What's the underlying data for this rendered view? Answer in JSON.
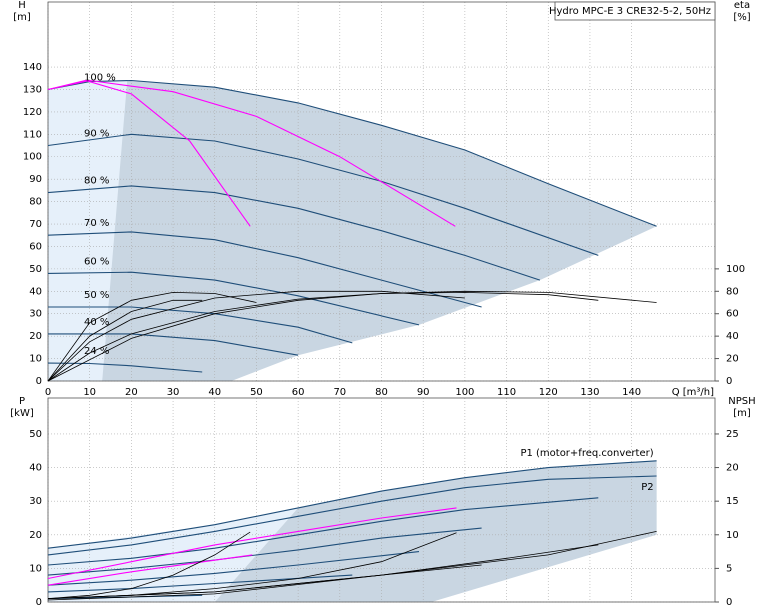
{
  "chart_data": [
    {
      "type": "line",
      "title": "Hydro MPC-E 3 CRE32-5-2, 50Hz",
      "y_label": "H",
      "y_unit": "[m]",
      "y2_label": "eta",
      "y2_unit": "[%]",
      "x_label": "Q [m³/h]",
      "xlim": [
        0,
        160
      ],
      "xticks": [
        0,
        10,
        20,
        30,
        40,
        50,
        60,
        70,
        80,
        90,
        100,
        110,
        120,
        130,
        140
      ],
      "ylim": [
        0,
        169
      ],
      "yticks": [
        0,
        10,
        20,
        30,
        40,
        50,
        60,
        70,
        80,
        90,
        100,
        110,
        120,
        130,
        140
      ],
      "y2lim": [
        0,
        338
      ],
      "y2ticks": [
        0,
        20,
        40,
        60,
        80,
        100
      ],
      "grid": true,
      "regions": [
        {
          "color": "#e6f0fa",
          "x": [
            0,
            10,
            20,
            55,
            40,
            0
          ],
          "values": [
            130,
            133.5,
            134,
            122,
            0,
            0
          ]
        },
        {
          "color": "#c9d6e2",
          "x": [
            13,
            19,
            40,
            60,
            80,
            100,
            120,
            146,
            118,
            89,
            60,
            44
          ],
          "values": [
            0,
            134,
            131,
            124,
            114,
            103,
            88,
            69,
            45,
            25,
            11.5,
            0
          ]
        }
      ],
      "series": [
        {
          "name": "100 %",
          "color": "#1f4e79",
          "x": [
            0,
            10,
            20,
            40,
            60,
            80,
            100,
            120,
            146
          ],
          "values": [
            130,
            133.5,
            134,
            131,
            124,
            114,
            103,
            88,
            69
          ]
        },
        {
          "name": "90 %",
          "color": "#1f4e79",
          "x": [
            0,
            20,
            40,
            60,
            80,
            100,
            132
          ],
          "values": [
            105,
            110,
            107,
            99,
            89,
            77,
            56
          ]
        },
        {
          "name": "80 %",
          "color": "#1f4e79",
          "x": [
            0,
            20,
            40,
            60,
            80,
            100,
            118
          ],
          "values": [
            84,
            87,
            84,
            77,
            67,
            56,
            45
          ]
        },
        {
          "name": "70 %",
          "color": "#1f4e79",
          "x": [
            0,
            20,
            40,
            60,
            80,
            104
          ],
          "values": [
            65,
            66.5,
            63,
            55,
            45,
            33
          ]
        },
        {
          "name": "60 %",
          "color": "#1f4e79",
          "x": [
            0,
            20,
            40,
            60,
            89
          ],
          "values": [
            48,
            48.5,
            45,
            38,
            25
          ]
        },
        {
          "name": "50 %",
          "color": "#1f4e79",
          "x": [
            0,
            20,
            40,
            60,
            73
          ],
          "values": [
            33,
            33,
            30,
            24,
            17
          ]
        },
        {
          "name": "40 %",
          "color": "#1f4e79",
          "x": [
            0,
            20,
            40,
            60
          ],
          "values": [
            21,
            21,
            18,
            11.5
          ]
        },
        {
          "name": "24 %",
          "color": "#1f4e79",
          "x": [
            0,
            10,
            20,
            37
          ],
          "values": [
            8,
            7.8,
            6.8,
            4
          ]
        },
        {
          "color": "#ff00ff",
          "x": [
            0,
            9,
            20,
            34,
            48.5
          ],
          "values": [
            130,
            134,
            128,
            107,
            69
          ]
        },
        {
          "color": "#ff00ff",
          "x": [
            0,
            10,
            30,
            50,
            70,
            97.7
          ],
          "values": [
            130,
            134,
            129,
            118,
            100,
            69
          ]
        },
        {
          "color": "#000000",
          "axis": "y2",
          "x": [
            0,
            10,
            20,
            30,
            40,
            50
          ],
          "values": [
            0,
            52,
            72,
            79,
            78,
            70
          ]
        },
        {
          "color": "#000000",
          "axis": "y2",
          "x": [
            0,
            10,
            20,
            40,
            60,
            80,
            100
          ],
          "values": [
            0,
            35,
            55,
            74,
            80,
            80,
            74
          ]
        },
        {
          "color": "#000000",
          "axis": "y2",
          "x": [
            0,
            10,
            20,
            40,
            60,
            80,
            100,
            120,
            146
          ],
          "values": [
            0,
            25,
            42,
            62,
            73,
            78,
            80,
            79,
            70
          ]
        },
        {
          "color": "#000000",
          "axis": "y2",
          "x": [
            0,
            10,
            20,
            30,
            37
          ],
          "values": [
            0,
            40,
            62,
            72,
            72
          ]
        },
        {
          "color": "#000000",
          "axis": "y2",
          "x": [
            0,
            20,
            40,
            60,
            80,
            100,
            120,
            132
          ],
          "values": [
            0,
            38,
            60,
            72,
            78,
            79,
            77,
            72
          ]
        }
      ]
    },
    {
      "type": "line",
      "y_label": "P",
      "y_unit": "[kW]",
      "y2_label": "NPSH",
      "y2_unit": "[m]",
      "xlim": [
        0,
        160
      ],
      "xticks": [
        0,
        10,
        20,
        30,
        40,
        50,
        60,
        70,
        80,
        90,
        100,
        110,
        120,
        130,
        140
      ],
      "ylim": [
        0,
        60.7
      ],
      "yticks": [
        0,
        10,
        20,
        30,
        40,
        50
      ],
      "y2lim": [
        0,
        30.35
      ],
      "y2ticks": [
        0,
        5,
        10,
        15,
        20,
        25
      ],
      "grid": true,
      "regions": [
        {
          "color": "#e6f0fa",
          "x": [
            0,
            40,
            60,
            40,
            0
          ],
          "values": [
            16,
            23,
            28,
            0,
            0
          ]
        },
        {
          "color": "#c9d6e2",
          "x": [
            40,
            60,
            80,
            100,
            120,
            146,
            146,
            92
          ],
          "values": [
            0,
            28,
            33,
            37,
            40,
            42,
            20,
            0
          ]
        }
      ],
      "series": [
        {
          "name": "P1 (motor+freq.converter)",
          "color": "#1f4e79",
          "x": [
            0,
            20,
            40,
            60,
            80,
            100,
            120,
            146
          ],
          "values": [
            16,
            19,
            23,
            28,
            33,
            37,
            40,
            42
          ]
        },
        {
          "name": "P2",
          "color": "#1f4e79",
          "x": [
            0,
            20,
            40,
            60,
            80,
            100,
            120,
            146
          ],
          "values": [
            14,
            17,
            21,
            25.5,
            30,
            34,
            36.5,
            37.5
          ]
        },
        {
          "color": "#1f4e79",
          "x": [
            0,
            20,
            40,
            60,
            80,
            100,
            132
          ],
          "values": [
            11,
            13,
            16,
            20,
            24,
            27.5,
            31
          ]
        },
        {
          "color": "#1f4e79",
          "x": [
            0,
            20,
            40,
            60,
            80,
            104
          ],
          "values": [
            8,
            10,
            12.5,
            15.5,
            19,
            22
          ]
        },
        {
          "color": "#1f4e79",
          "x": [
            0,
            20,
            40,
            60,
            89
          ],
          "values": [
            5,
            6.5,
            8.5,
            11,
            15
          ]
        },
        {
          "color": "#1f4e79",
          "x": [
            0,
            20,
            40,
            73
          ],
          "values": [
            3,
            4,
            5.5,
            8
          ]
        },
        {
          "color": "#1f4e79",
          "x": [
            0,
            20,
            37
          ],
          "values": [
            1,
            1.5,
            2
          ]
        },
        {
          "color": "#ff00ff",
          "x": [
            0,
            20,
            40,
            60,
            80,
            98
          ],
          "values": [
            7,
            12,
            17,
            21,
            25,
            28
          ]
        },
        {
          "color": "#ff00ff",
          "x": [
            0,
            20,
            49
          ],
          "values": [
            5,
            9,
            14
          ]
        },
        {
          "color": "#000000",
          "axis": "y2",
          "x": [
            0,
            40,
            80,
            120,
            146
          ],
          "values": [
            0.5,
            1.5,
            4,
            7,
            10.5
          ]
        },
        {
          "color": "#000000",
          "axis": "y2",
          "x": [
            0,
            40,
            80,
            110,
            132
          ],
          "values": [
            0.5,
            1.5,
            4,
            6.5,
            8.5
          ]
        },
        {
          "color": "#000000",
          "axis": "y2",
          "x": [
            0,
            40,
            80,
            104
          ],
          "values": [
            0.3,
            1.2,
            4,
            5.5
          ]
        },
        {
          "color": "#000000",
          "axis": "y2",
          "x": [
            0,
            20,
            40,
            60,
            80,
            98
          ],
          "values": [
            0.5,
            1,
            2,
            3.5,
            6,
            10.3
          ]
        },
        {
          "color": "#000000",
          "axis": "y2",
          "x": [
            0,
            10,
            20,
            30,
            40,
            48.5
          ],
          "values": [
            0.5,
            1,
            2,
            4,
            7,
            10.4
          ]
        }
      ]
    }
  ]
}
